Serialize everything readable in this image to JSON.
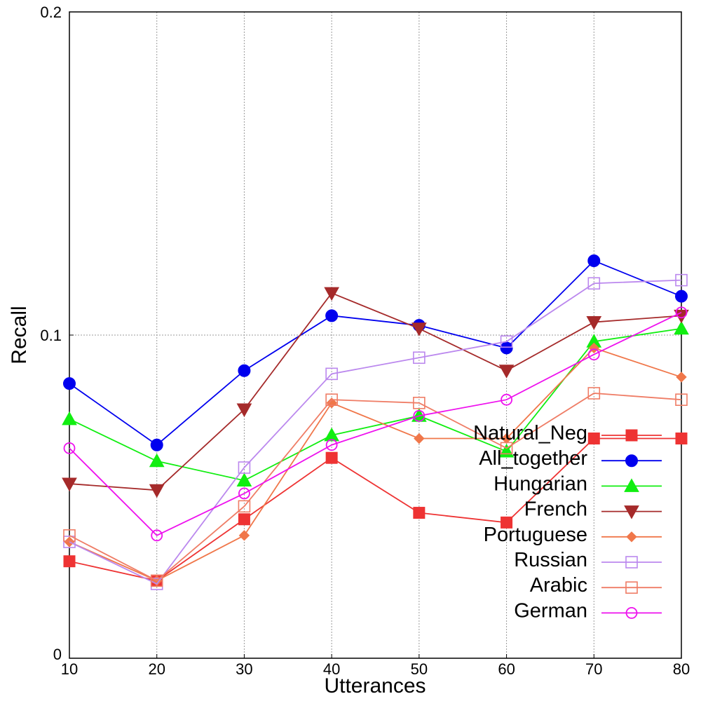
{
  "chart_data": {
    "type": "line",
    "xlabel": "Utterances",
    "ylabel": "Recall",
    "x": [
      10,
      20,
      30,
      40,
      50,
      60,
      70,
      80
    ],
    "xlim": [
      10,
      80
    ],
    "ylim": [
      0,
      0.2
    ],
    "xticks": [
      "10",
      "20",
      "30",
      "40",
      "50",
      "60",
      "70",
      "80"
    ],
    "yticks": [
      {
        "value": 0,
        "label": "0"
      },
      {
        "value": 0.1,
        "label": "0.1"
      },
      {
        "value": 0.2,
        "label": "0.2"
      }
    ],
    "grid": true,
    "legend_position": "lower-right",
    "series": [
      {
        "name": "Natural_Neg",
        "color": "#ee3333",
        "marker": "square-filled",
        "values": [
          0.03,
          0.024,
          0.043,
          0.062,
          0.045,
          0.042,
          0.068,
          0.068
        ]
      },
      {
        "name": "All_together",
        "color": "#0000ee",
        "marker": "circle-filled",
        "values": [
          0.085,
          0.066,
          0.089,
          0.106,
          0.103,
          0.096,
          0.123,
          0.112
        ]
      },
      {
        "name": "Hungarian",
        "color": "#11ee11",
        "marker": "triangle-up-filled",
        "values": [
          0.074,
          0.061,
          0.055,
          0.069,
          0.075,
          0.064,
          0.098,
          0.102
        ]
      },
      {
        "name": "French",
        "color": "#a52a2a",
        "marker": "triangle-down-filled",
        "values": [
          0.054,
          0.052,
          0.077,
          0.113,
          0.102,
          0.089,
          0.104,
          0.106
        ]
      },
      {
        "name": "Portuguese",
        "color": "#f0774a",
        "marker": "diamond-filled",
        "values": [
          0.036,
          0.024,
          0.038,
          0.079,
          0.068,
          0.068,
          0.096,
          0.087
        ]
      },
      {
        "name": "Russian",
        "color": "#bb88ee",
        "marker": "square-open",
        "values": [
          0.036,
          0.023,
          0.059,
          0.088,
          0.093,
          0.098,
          0.116,
          0.117
        ]
      },
      {
        "name": "Arabic",
        "color": "#ef7d66",
        "marker": "square-open",
        "values": [
          0.038,
          0.024,
          0.047,
          0.08,
          0.079,
          0.065,
          0.082,
          0.08
        ]
      },
      {
        "name": "German",
        "color": "#ee11ee",
        "marker": "circle-open",
        "values": [
          0.065,
          0.038,
          0.051,
          0.066,
          0.075,
          0.08,
          0.094,
          0.107
        ]
      }
    ]
  }
}
